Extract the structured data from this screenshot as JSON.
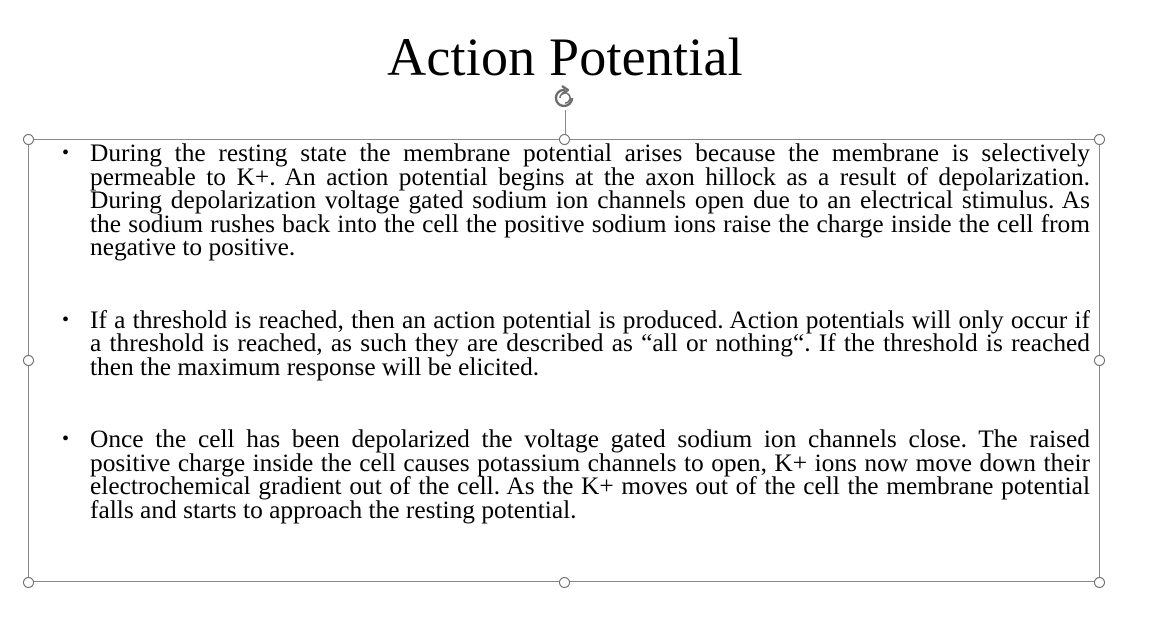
{
  "slide": {
    "title": "Action Potential",
    "bullets": [
      {
        "marker": "•",
        "text": "During the resting state the membrane potential arises because the membrane is selectively permeable to K+. An action potential begins at the axon hillock as a result of depolarization. During depolarization voltage gated sodium ion channels open due to an electrical stimulus. As the sodium rushes back into the cell the positive sodium ions raise the charge inside the cell from negative to positive."
      },
      {
        "marker": "•",
        "text": "If a threshold is reached, then an action potential is produced. Action potentials will only occur if a threshold is reached, as such they are described as “all or nothing“. If the threshold is reached then the maximum response will be elicited."
      },
      {
        "marker": "•",
        "text": "Once the cell has been depolarized the voltage gated sodium ion channels close. The raised positive charge inside the cell causes potassium channels to open, K+ ions now move down their electrochemical gradient out of the cell. As the K+ moves out of the cell the membrane potential falls and starts to approach the resting potential."
      }
    ]
  },
  "selection": {
    "rotate_icon": "rotate-handle-icon",
    "handle_color": "#6b6b6b",
    "border_color": "#8a8a8a"
  }
}
